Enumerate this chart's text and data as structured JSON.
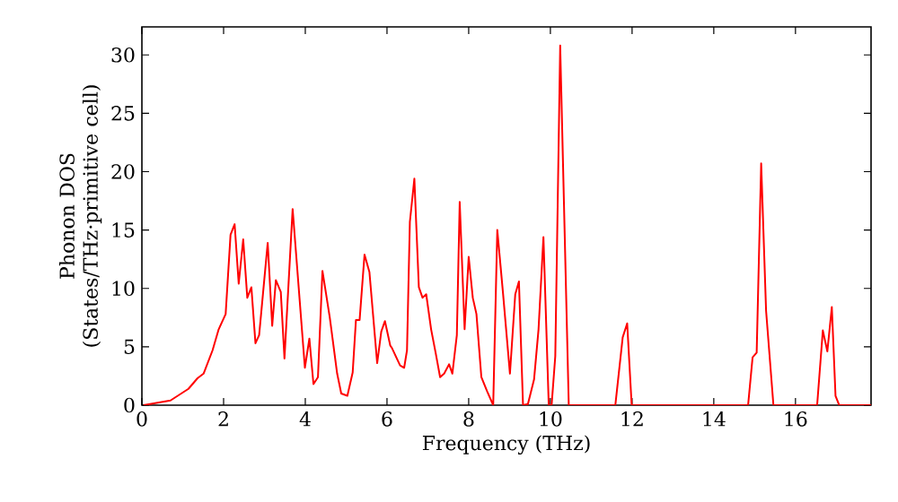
{
  "chart_data": {
    "type": "line",
    "xlabel": "Frequency (THz)",
    "ylabel": "Phonon DOS (States/THz·primitive cell)",
    "xlim": [
      0,
      17.85
    ],
    "ylim": [
      0,
      32.4
    ],
    "xticks": [
      0,
      2,
      4,
      6,
      8,
      10,
      12,
      14,
      16
    ],
    "yticks": [
      0,
      5,
      10,
      15,
      20,
      25,
      30
    ],
    "color": "#ff0000",
    "x": [
      0.04,
      0.7,
      1.14,
      1.36,
      1.51,
      1.73,
      1.88,
      2.05,
      2.17,
      2.27,
      2.37,
      2.48,
      2.58,
      2.68,
      2.78,
      2.87,
      3.08,
      3.19,
      3.28,
      3.4,
      3.49,
      3.69,
      3.99,
      4.1,
      4.2,
      4.31,
      4.42,
      4.6,
      4.78,
      4.88,
      5.03,
      5.16,
      5.24,
      5.33,
      5.45,
      5.57,
      5.76,
      5.86,
      5.95,
      6.08,
      6.12,
      6.32,
      6.42,
      6.49,
      6.56,
      6.67,
      6.78,
      6.87,
      6.96,
      7.08,
      7.19,
      7.3,
      7.4,
      7.52,
      7.6,
      7.71,
      7.78,
      7.9,
      8.0,
      8.1,
      8.19,
      8.31,
      8.45,
      8.6,
      8.7,
      8.84,
      9.01,
      9.14,
      9.23,
      9.33,
      9.45,
      9.6,
      9.71,
      9.83,
      9.96,
      10.03,
      10.12,
      10.24,
      10.45,
      11.47,
      11.59,
      11.77,
      11.88,
      11.99,
      14.84,
      14.95,
      15.05,
      15.16,
      15.28,
      15.46,
      16.53,
      16.67,
      16.78,
      16.89,
      16.98,
      17.07,
      17.85
    ],
    "values": [
      0,
      0.4,
      1.4,
      2.3,
      2.7,
      4.7,
      6.5,
      7.8,
      14.6,
      15.5,
      10.4,
      14.2,
      9.2,
      10.1,
      5.3,
      6.0,
      13.9,
      6.8,
      10.7,
      9.7,
      4.0,
      16.8,
      3.2,
      5.7,
      1.8,
      2.4,
      11.5,
      7.5,
      2.7,
      1.0,
      0.8,
      2.8,
      7.3,
      7.3,
      12.9,
      11.4,
      3.6,
      6.3,
      7.2,
      5.1,
      4.9,
      3.4,
      3.2,
      4.7,
      15.7,
      19.4,
      10.1,
      9.2,
      9.5,
      6.5,
      4.5,
      2.4,
      2.7,
      3.5,
      2.7,
      6.0,
      17.4,
      6.5,
      12.7,
      9.2,
      7.8,
      2.4,
      1.2,
      0,
      15.0,
      9.6,
      2.7,
      9.5,
      10.6,
      0,
      0.1,
      2.2,
      6.5,
      14.4,
      0,
      0,
      4.2,
      30.8,
      0,
      0,
      0,
      5.8,
      7.0,
      0,
      0,
      4.1,
      4.5,
      20.7,
      8.1,
      0,
      0,
      6.4,
      4.6,
      8.4,
      0.8,
      0,
      0
    ]
  }
}
